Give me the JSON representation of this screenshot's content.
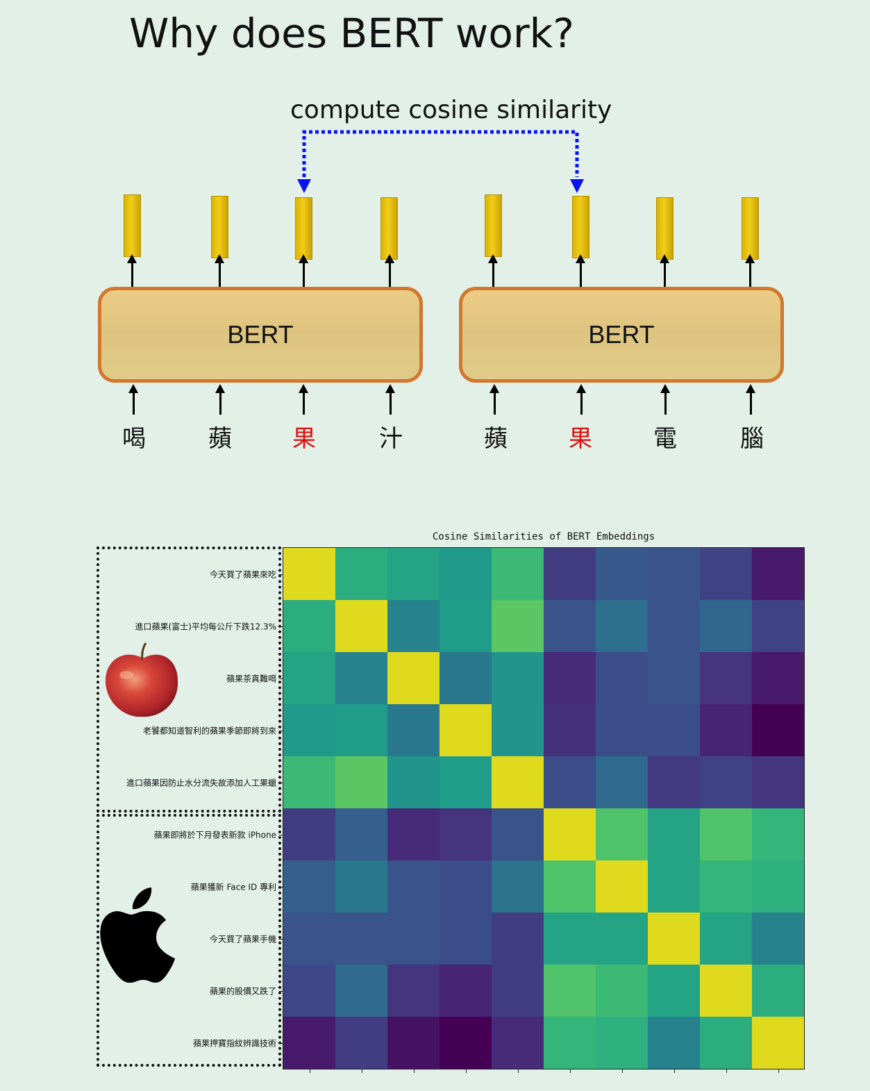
{
  "title": "Why does BERT work?",
  "diagram": {
    "similarity_label": "compute cosine similarity",
    "model_label": "BERT",
    "sentence_a": [
      "喝",
      "蘋",
      "果",
      "汁"
    ],
    "sentence_b": [
      "蘋",
      "果",
      "電",
      "腦"
    ],
    "highlight_index_a": 2,
    "highlight_index_b": 1,
    "highlight_color": "#e01010",
    "box_border_color": "#d2772d",
    "vector_color": "#e8c20c",
    "dashed_connector_color": "#0a12f0"
  },
  "chart_data": {
    "type": "heatmap",
    "title": "Cosine Similarities of BERT Embeddings",
    "row_labels": [
      "今天買了蘋果來吃",
      "進口蘋果(富士)平均每公斤下跌12.3%",
      "蘋果茶真難喝",
      "老饕都知道智利的蘋果季節即將到來",
      "進口蘋果因防止水分流失故添加人工果蠟",
      "蘋果即將於下月發表新款 iPhone",
      "蘋果獲新 Face ID 專利",
      "今天買了蘋果手機",
      "蘋果的股價又跌了",
      "蘋果押寶指紋辨識技術"
    ],
    "colormap": "viridis",
    "values": [
      [
        1.0,
        0.62,
        0.58,
        0.54,
        0.68,
        0.18,
        0.28,
        0.26,
        0.2,
        0.07
      ],
      [
        0.62,
        1.0,
        0.45,
        0.55,
        0.74,
        0.26,
        0.36,
        0.26,
        0.33,
        0.2
      ],
      [
        0.58,
        0.45,
        1.0,
        0.4,
        0.52,
        0.12,
        0.24,
        0.26,
        0.15,
        0.07
      ],
      [
        0.54,
        0.55,
        0.4,
        1.0,
        0.52,
        0.14,
        0.24,
        0.24,
        0.1,
        0.0
      ],
      [
        0.68,
        0.74,
        0.52,
        0.55,
        1.0,
        0.24,
        0.34,
        0.17,
        0.2,
        0.15
      ],
      [
        0.18,
        0.3,
        0.12,
        0.15,
        0.26,
        1.0,
        0.72,
        0.58,
        0.72,
        0.66
      ],
      [
        0.3,
        0.4,
        0.26,
        0.24,
        0.38,
        0.72,
        1.0,
        0.58,
        0.66,
        0.63
      ],
      [
        0.26,
        0.26,
        0.26,
        0.24,
        0.18,
        0.58,
        0.58,
        1.0,
        0.58,
        0.45
      ],
      [
        0.22,
        0.34,
        0.15,
        0.1,
        0.18,
        0.72,
        0.68,
        0.58,
        1.0,
        0.62
      ],
      [
        0.07,
        0.18,
        0.05,
        0.0,
        0.12,
        0.66,
        0.63,
        0.45,
        0.62,
        1.0
      ]
    ],
    "groups": [
      {
        "icon": "red-apple-fruit-icon",
        "rows": [
          0,
          4
        ]
      },
      {
        "icon": "apple-logo-icon",
        "rows": [
          5,
          9
        ]
      }
    ]
  }
}
